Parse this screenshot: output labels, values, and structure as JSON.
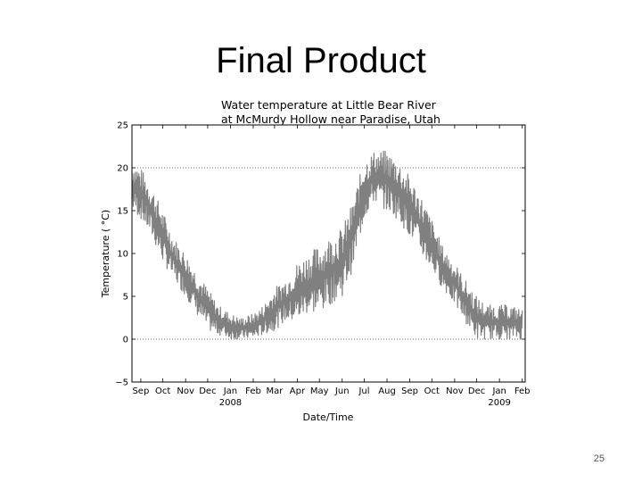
{
  "slide": {
    "title": "Final Product",
    "page_number": "25"
  },
  "chart_data": {
    "type": "line",
    "title_line1": "Water temperature at Little Bear River",
    "title_line2": "at McMurdy Hollow near Paradise, Utah",
    "xlabel": "Date/Time",
    "ylabel": "Temperature ( °C)",
    "ylim": [
      -5,
      25
    ],
    "yticks": [
      "25",
      "20",
      "15",
      "10",
      "5",
      "0",
      "−5"
    ],
    "ytick_values": [
      25,
      20,
      15,
      10,
      5,
      0,
      -5
    ],
    "xlim": [
      "2007-08-20",
      "2009-02-05"
    ],
    "xticks": [
      {
        "date": "2007-09-01",
        "label": "Sep"
      },
      {
        "date": "2007-10-01",
        "label": "Oct"
      },
      {
        "date": "2007-11-01",
        "label": "Nov"
      },
      {
        "date": "2007-12-01",
        "label": "Dec"
      },
      {
        "date": "2008-01-01",
        "label": "Jan",
        "sub": "2008"
      },
      {
        "date": "2008-02-01",
        "label": "Feb"
      },
      {
        "date": "2008-03-01",
        "label": "Mar"
      },
      {
        "date": "2008-04-01",
        "label": "Apr"
      },
      {
        "date": "2008-05-01",
        "label": "May"
      },
      {
        "date": "2008-06-01",
        "label": "Jun"
      },
      {
        "date": "2008-07-01",
        "label": "Jul"
      },
      {
        "date": "2008-08-01",
        "label": "Aug"
      },
      {
        "date": "2008-09-01",
        "label": "Sep"
      },
      {
        "date": "2008-10-01",
        "label": "Oct"
      },
      {
        "date": "2008-11-01",
        "label": "Nov"
      },
      {
        "date": "2008-12-01",
        "label": "Dec"
      },
      {
        "date": "2009-01-01",
        "label": "Jan",
        "sub": "2009"
      },
      {
        "date": "2009-02-01",
        "label": "Feb"
      }
    ],
    "grid": "dotted horizontal at 0 and 20",
    "grid_y_values": [
      0,
      20
    ],
    "series": [
      {
        "color": "#808080",
        "points": [
          {
            "x": "2007-08-20",
            "low": 15,
            "high": 21
          },
          {
            "x": "2007-09-01",
            "low": 14,
            "high": 20
          },
          {
            "x": "2007-09-15",
            "low": 12,
            "high": 18
          },
          {
            "x": "2007-10-01",
            "low": 9,
            "high": 15
          },
          {
            "x": "2007-10-15",
            "low": 7,
            "high": 12
          },
          {
            "x": "2007-11-01",
            "low": 5,
            "high": 10
          },
          {
            "x": "2007-11-15",
            "low": 3,
            "high": 8
          },
          {
            "x": "2007-12-01",
            "low": 1,
            "high": 6
          },
          {
            "x": "2007-12-15",
            "low": 0.5,
            "high": 4
          },
          {
            "x": "2008-01-01",
            "low": 0,
            "high": 3
          },
          {
            "x": "2008-01-15",
            "low": 0,
            "high": 2.5
          },
          {
            "x": "2008-02-01",
            "low": 0,
            "high": 3
          },
          {
            "x": "2008-02-15",
            "low": 0.5,
            "high": 4
          },
          {
            "x": "2008-03-01",
            "low": 1,
            "high": 6
          },
          {
            "x": "2008-03-15",
            "low": 2,
            "high": 7
          },
          {
            "x": "2008-04-01",
            "low": 2,
            "high": 9
          },
          {
            "x": "2008-04-15",
            "low": 3,
            "high": 10
          },
          {
            "x": "2008-05-01",
            "low": 3,
            "high": 11
          },
          {
            "x": "2008-05-15",
            "low": 4,
            "high": 12
          },
          {
            "x": "2008-06-01",
            "low": 5,
            "high": 13
          },
          {
            "x": "2008-06-15",
            "low": 8,
            "high": 16
          },
          {
            "x": "2008-07-01",
            "low": 14,
            "high": 21
          },
          {
            "x": "2008-07-15",
            "low": 16,
            "high": 22
          },
          {
            "x": "2008-08-01",
            "low": 15,
            "high": 22
          },
          {
            "x": "2008-08-15",
            "low": 14,
            "high": 21
          },
          {
            "x": "2008-09-01",
            "low": 12,
            "high": 19
          },
          {
            "x": "2008-09-15",
            "low": 10,
            "high": 17
          },
          {
            "x": "2008-10-01",
            "low": 8,
            "high": 14
          },
          {
            "x": "2008-10-15",
            "low": 6,
            "high": 11
          },
          {
            "x": "2008-11-01",
            "low": 4,
            "high": 9
          },
          {
            "x": "2008-11-15",
            "low": 2,
            "high": 7
          },
          {
            "x": "2008-12-01",
            "low": 0,
            "high": 5
          },
          {
            "x": "2008-12-15",
            "low": 0,
            "high": 4
          },
          {
            "x": "2009-01-01",
            "low": 0,
            "high": 4
          },
          {
            "x": "2009-01-15",
            "low": 0,
            "high": 4
          },
          {
            "x": "2009-02-01",
            "low": 0,
            "high": 3.5
          }
        ]
      }
    ]
  }
}
